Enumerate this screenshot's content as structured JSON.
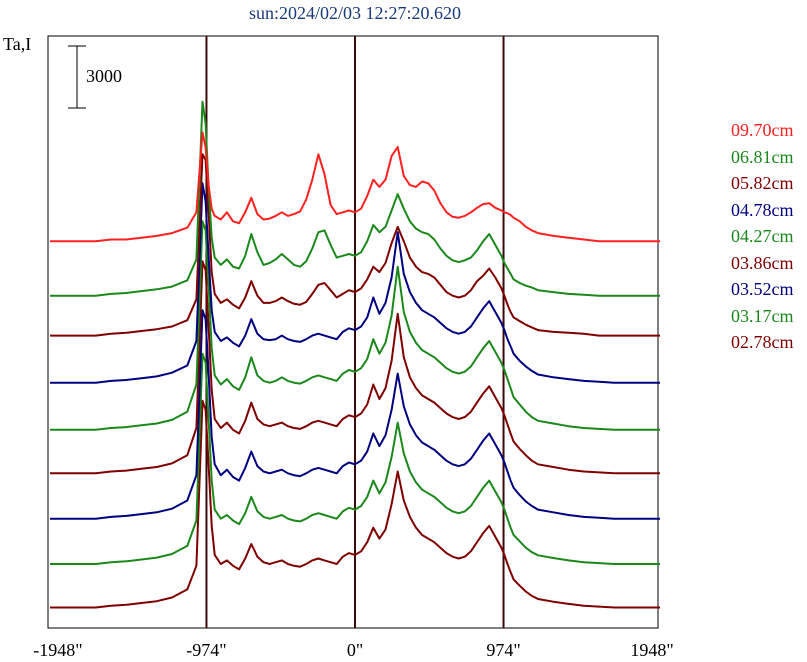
{
  "chart_data": {
    "type": "line",
    "title": "sun:2024/02/03 12:27:20.620",
    "ylabel": "Ta,I",
    "scale_bar_label": "3000",
    "xlim": [
      -2000,
      2000
    ],
    "x_ticks": [
      {
        "value": -1948,
        "label": "-1948\""
      },
      {
        "value": -974,
        "label": "-974\""
      },
      {
        "value": 0,
        "label": "0\""
      },
      {
        "value": 974,
        "label": "974\""
      },
      {
        "value": 1948,
        "label": "1948\""
      }
    ],
    "reference_lines": [
      -974,
      0,
      974
    ],
    "x": [
      -2000,
      -1900,
      -1800,
      -1700,
      -1600,
      -1500,
      -1400,
      -1300,
      -1200,
      -1100,
      -1040,
      -1000,
      -980,
      -960,
      -940,
      -920,
      -880,
      -840,
      -800,
      -760,
      -720,
      -680,
      -640,
      -600,
      -560,
      -520,
      -480,
      -440,
      -400,
      -360,
      -320,
      -280,
      -240,
      -200,
      -160,
      -120,
      -80,
      -40,
      0,
      40,
      80,
      120,
      160,
      200,
      240,
      280,
      320,
      360,
      400,
      440,
      480,
      520,
      560,
      600,
      640,
      680,
      720,
      760,
      800,
      840,
      880,
      920,
      960,
      980,
      1000,
      1020,
      1040,
      1080,
      1120,
      1160,
      1200,
      1300,
      1400,
      1500,
      1600,
      1700,
      1800,
      1900,
      2000
    ],
    "series": [
      {
        "name": "09.70cm",
        "color": "#ff2020",
        "baseline": 0,
        "values": [
          0,
          0,
          0,
          0,
          100,
          100,
          200,
          300,
          450,
          750,
          1600,
          6000,
          5200,
          3100,
          1800,
          1400,
          1200,
          1600,
          1100,
          1000,
          1600,
          2400,
          1500,
          1200,
          1250,
          1400,
          1600,
          1400,
          1500,
          1650,
          2300,
          3400,
          4800,
          3700,
          2000,
          1500,
          1600,
          1700,
          1600,
          1800,
          2500,
          3400,
          3000,
          3400,
          4700,
          5200,
          3600,
          3100,
          3000,
          3300,
          3200,
          2800,
          2100,
          1600,
          1350,
          1300,
          1400,
          1600,
          1850,
          2050,
          2100,
          1850,
          1700,
          1600,
          1550,
          1450,
          1300,
          1100,
          800,
          600,
          450,
          300,
          200,
          100,
          0,
          0,
          0,
          0,
          0
        ]
      },
      {
        "name": "06.81cm",
        "color": "#1b881b",
        "baseline": -3000,
        "values": [
          0,
          0,
          0,
          0,
          100,
          150,
          250,
          350,
          500,
          850,
          2000,
          10700,
          9500,
          6000,
          3200,
          2100,
          1700,
          2000,
          1600,
          1500,
          2200,
          3400,
          2400,
          1700,
          1800,
          2000,
          2300,
          2000,
          1700,
          1600,
          1900,
          2600,
          3500,
          3600,
          2800,
          2100,
          2200,
          2300,
          2200,
          2400,
          3000,
          3900,
          3500,
          3800,
          4700,
          5600,
          4800,
          4100,
          3700,
          3500,
          3400,
          3100,
          2600,
          2200,
          1950,
          1850,
          1950,
          2100,
          2500,
          3000,
          3400,
          2800,
          2200,
          1800,
          1500,
          1200,
          900,
          700,
          550,
          450,
          300,
          200,
          100,
          50,
          0,
          0,
          0,
          0,
          0
        ]
      },
      {
        "name": "05.82cm",
        "color": "#7f0000",
        "baseline": -5200,
        "values": [
          0,
          0,
          0,
          0,
          100,
          150,
          250,
          350,
          500,
          850,
          2000,
          10000,
          9700,
          6800,
          3500,
          2300,
          1800,
          2000,
          1700,
          1500,
          2100,
          3000,
          2200,
          1800,
          1800,
          1900,
          2100,
          1900,
          1750,
          1700,
          1850,
          2300,
          2800,
          2900,
          2500,
          2100,
          2300,
          2500,
          2400,
          2600,
          3100,
          3800,
          3500,
          4000,
          5100,
          6000,
          5200,
          4300,
          3800,
          3500,
          3400,
          3200,
          2800,
          2400,
          2200,
          2100,
          2200,
          2500,
          3000,
          3300,
          3700,
          3200,
          2600,
          2200,
          1700,
          1300,
          1000,
          800,
          600,
          450,
          300,
          200,
          150,
          100,
          0,
          0,
          0,
          0,
          0
        ]
      },
      {
        "name": "04.78cm",
        "color": "#000080",
        "baseline": -7800,
        "values": [
          0,
          0,
          0,
          0,
          100,
          150,
          250,
          350,
          550,
          950,
          2300,
          11000,
          10000,
          7000,
          4000,
          2800,
          2300,
          2500,
          2200,
          2000,
          2600,
          3500,
          2700,
          2400,
          2350,
          2400,
          2600,
          2400,
          2300,
          2250,
          2400,
          2600,
          2700,
          2600,
          2500,
          2400,
          2800,
          3000,
          2900,
          3100,
          3600,
          4700,
          3800,
          4400,
          5800,
          8300,
          6000,
          5000,
          4400,
          4000,
          3800,
          3600,
          3300,
          3000,
          2800,
          2700,
          2800,
          3100,
          3600,
          4100,
          4500,
          3900,
          3300,
          2900,
          2400,
          2000,
          1600,
          1200,
          900,
          650,
          450,
          300,
          200,
          100,
          50,
          0,
          0,
          0,
          0
        ]
      },
      {
        "name": "04.27cm",
        "color": "#1b881b",
        "baseline": -10400,
        "values": [
          0,
          0,
          0,
          0,
          100,
          150,
          250,
          350,
          550,
          1000,
          2500,
          11500,
          11000,
          8000,
          4500,
          3000,
          2500,
          2800,
          2400,
          2200,
          2900,
          4000,
          3000,
          2700,
          2600,
          2700,
          2900,
          2700,
          2600,
          2550,
          2700,
          2900,
          3000,
          2900,
          2800,
          2700,
          3100,
          3300,
          3200,
          3400,
          3900,
          5000,
          4200,
          4800,
          6300,
          9000,
          6500,
          5400,
          4800,
          4400,
          4200,
          4000,
          3700,
          3400,
          3200,
          3100,
          3200,
          3500,
          4000,
          4500,
          4900,
          4300,
          3700,
          3300,
          2800,
          2300,
          1800,
          1400,
          1000,
          700,
          500,
          350,
          200,
          100,
          50,
          0,
          0,
          0,
          0
        ]
      },
      {
        "name": "03.86cm",
        "color": "#7f0000",
        "baseline": -12800,
        "values": [
          0,
          0,
          0,
          0,
          100,
          150,
          250,
          350,
          550,
          1000,
          2500,
          11700,
          11200,
          8100,
          4600,
          3000,
          2500,
          2800,
          2400,
          2200,
          2900,
          3900,
          3000,
          2700,
          2600,
          2700,
          2800,
          2600,
          2500,
          2450,
          2600,
          2800,
          2900,
          2800,
          2700,
          2600,
          3000,
          3200,
          3100,
          3300,
          3800,
          4900,
          4100,
          4700,
          6200,
          8800,
          6400,
          5300,
          4700,
          4300,
          4100,
          3900,
          3600,
          3300,
          3100,
          3000,
          3100,
          3400,
          3900,
          4400,
          4800,
          4200,
          3600,
          3200,
          2700,
          2200,
          1750,
          1350,
          1000,
          700,
          500,
          350,
          200,
          100,
          50,
          0,
          0,
          0,
          0
        ]
      },
      {
        "name": "03.52cm",
        "color": "#000080",
        "baseline": -15300,
        "values": [
          0,
          0,
          0,
          0,
          100,
          150,
          250,
          350,
          550,
          1000,
          2400,
          11500,
          11000,
          8000,
          4500,
          3000,
          2400,
          2700,
          2300,
          2100,
          2800,
          3700,
          2900,
          2600,
          2500,
          2600,
          2700,
          2500,
          2400,
          2350,
          2500,
          2700,
          2800,
          2700,
          2600,
          2500,
          2900,
          3100,
          3000,
          3200,
          3700,
          4700,
          4000,
          4600,
          6000,
          8000,
          6200,
          5200,
          4600,
          4200,
          4000,
          3800,
          3500,
          3200,
          3000,
          2900,
          3000,
          3300,
          3800,
          4300,
          4700,
          4100,
          3500,
          3100,
          2600,
          2100,
          1700,
          1300,
          950,
          700,
          500,
          350,
          200,
          100,
          50,
          0,
          0,
          0,
          0
        ]
      },
      {
        "name": "03.17cm",
        "color": "#1b881b",
        "baseline": -17800,
        "values": [
          0,
          0,
          0,
          0,
          100,
          150,
          250,
          350,
          550,
          1000,
          2400,
          11600,
          11100,
          8000,
          4600,
          3000,
          2500,
          2700,
          2400,
          2200,
          2800,
          3700,
          2900,
          2600,
          2500,
          2600,
          2700,
          2500,
          2400,
          2350,
          2500,
          2700,
          2800,
          2700,
          2600,
          2500,
          2900,
          3100,
          3000,
          3200,
          3700,
          4600,
          3900,
          4500,
          5900,
          7800,
          6100,
          5100,
          4500,
          4100,
          3900,
          3700,
          3400,
          3100,
          2900,
          2800,
          2900,
          3200,
          3700,
          4200,
          4600,
          4000,
          3400,
          3000,
          2500,
          2000,
          1600,
          1250,
          900,
          650,
          480,
          330,
          200,
          100,
          50,
          0,
          0,
          0,
          0
        ]
      },
      {
        "name": "02.78cm",
        "color": "#7f0000",
        "baseline": -20200,
        "values": [
          0,
          0,
          0,
          0,
          100,
          150,
          250,
          350,
          550,
          1000,
          2300,
          11400,
          10900,
          7900,
          4500,
          2900,
          2400,
          2600,
          2300,
          2100,
          2700,
          3500,
          2800,
          2500,
          2400,
          2500,
          2600,
          2400,
          2300,
          2250,
          2400,
          2600,
          2700,
          2600,
          2500,
          2400,
          2800,
          3000,
          2900,
          3100,
          3600,
          4400,
          3800,
          4300,
          5700,
          7500,
          5900,
          5000,
          4400,
          4000,
          3800,
          3600,
          3300,
          3000,
          2800,
          2700,
          2800,
          3100,
          3600,
          4100,
          4500,
          3900,
          3300,
          2900,
          2400,
          1950,
          1550,
          1200,
          880,
          640,
          470,
          320,
          200,
          100,
          50,
          0,
          0,
          0,
          0
        ]
      }
    ],
    "ylim": [
      -21000,
      10000
    ],
    "grid": false,
    "legend_position": "right"
  }
}
